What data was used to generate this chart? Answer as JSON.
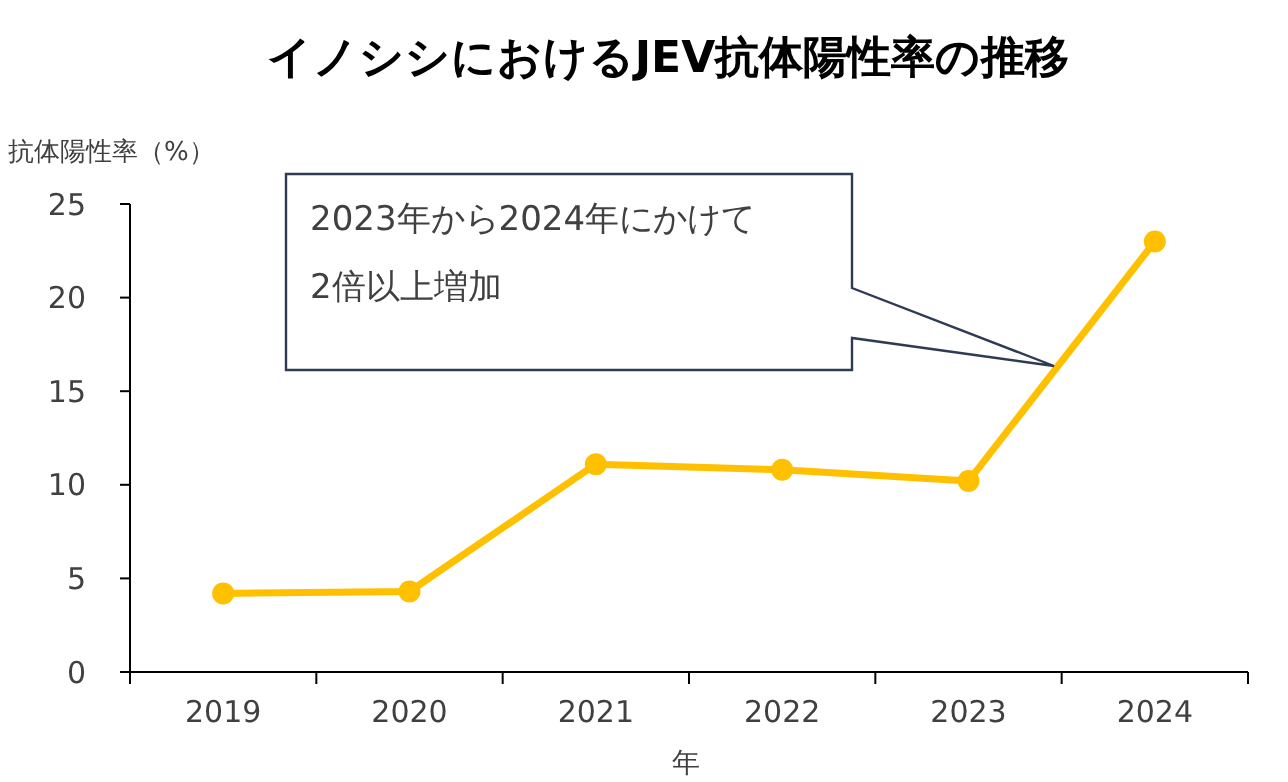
{
  "chart_data": {
    "type": "line",
    "title": "イノシシにおけるJEV抗体陽性率の推移",
    "ylabel": "抗体陽性率（%）",
    "xlabel": "年",
    "categories": [
      "2019",
      "2020",
      "2021",
      "2022",
      "2023",
      "2024"
    ],
    "series": [
      {
        "color": "#ffc000",
        "values": [
          4.2,
          4.3,
          11.1,
          10.8,
          10.2,
          23.0
        ]
      }
    ],
    "ylim": [
      0,
      25
    ],
    "yticks": [
      0,
      5,
      10,
      15,
      20,
      25
    ],
    "grid": false,
    "marker": "circle",
    "line_style": "solid",
    "annotations": [
      "2023年から2024年にかけて\n2倍以上増加"
    ]
  }
}
